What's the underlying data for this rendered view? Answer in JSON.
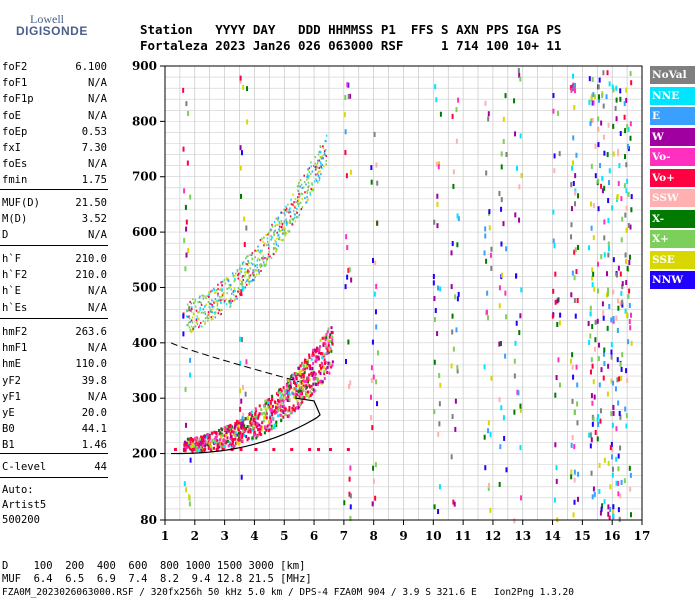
{
  "logo": {
    "line1": "Lowell",
    "line2": "DIGISONDE"
  },
  "header": {
    "row1": "Station   YYYY DAY   DDD HHMMSS P1  FFS S AXN PPS IGA PS",
    "row2": "Fortaleza 2023 Jan26 026 063000 RSF     1 714 100 10+ 11"
  },
  "params": {
    "group1": [
      {
        "k": "foF2",
        "v": "6.100"
      },
      {
        "k": "foF1",
        "v": "N/A"
      },
      {
        "k": "foF1p",
        "v": "N/A"
      },
      {
        "k": "foE",
        "v": "N/A"
      },
      {
        "k": "foEp",
        "v": "0.53"
      },
      {
        "k": "fxI",
        "v": "7.30"
      },
      {
        "k": "foEs",
        "v": "N/A"
      },
      {
        "k": "fmin",
        "v": "1.75"
      }
    ],
    "group2": [
      {
        "k": "MUF(D)",
        "v": "21.50"
      },
      {
        "k": "M(D)",
        "v": "3.52"
      },
      {
        "k": "D",
        "v": "N/A"
      }
    ],
    "group3": [
      {
        "k": "h`F",
        "v": "210.0"
      },
      {
        "k": "h`F2",
        "v": "210.0"
      },
      {
        "k": "h`E",
        "v": "N/A"
      },
      {
        "k": "h`Es",
        "v": "N/A"
      }
    ],
    "group4": [
      {
        "k": "hmF2",
        "v": "263.6"
      },
      {
        "k": "hmF1",
        "v": "N/A"
      },
      {
        "k": "hmE",
        "v": "110.0"
      },
      {
        "k": "yF2",
        "v": "39.8"
      },
      {
        "k": "yF1",
        "v": "N/A"
      },
      {
        "k": "yE",
        "v": "20.0"
      },
      {
        "k": "B0",
        "v": "44.1"
      },
      {
        "k": "B1",
        "v": "1.46"
      }
    ],
    "group5": [
      {
        "k": "C-level",
        "v": "44"
      }
    ],
    "auto": [
      "Auto:",
      "Artist5",
      "500200"
    ]
  },
  "legend": [
    {
      "label": "NoVal",
      "color": "#7f7f7f"
    },
    {
      "label": "NNE",
      "color": "#00e5ff"
    },
    {
      "label": "E",
      "color": "#3aa0ff"
    },
    {
      "label": "W",
      "color": "#a000a0"
    },
    {
      "label": "Vo-",
      "color": "#ff30c0"
    },
    {
      "label": "Vo+",
      "color": "#ff0040"
    },
    {
      "label": "SSW",
      "color": "#ffb0b0"
    },
    {
      "label": "X-",
      "color": "#007a00"
    },
    {
      "label": "X+",
      "color": "#7ccf5a"
    },
    {
      "label": "SSE",
      "color": "#d8d800"
    },
    {
      "label": "NNW",
      "color": "#2000ff"
    }
  ],
  "chart_data": {
    "type": "scatter",
    "xlim": [
      1,
      17
    ],
    "ylim": [
      80,
      900
    ],
    "x_ticks": [
      1,
      2,
      3,
      4,
      5,
      6,
      7,
      8,
      9,
      10,
      11,
      12,
      13,
      14,
      15,
      16,
      17
    ],
    "y_ticks": [
      80,
      200,
      300,
      400,
      500,
      600,
      700,
      800,
      900
    ],
    "grid": true
  },
  "footer": {
    "row1": "D    100  200  400  600  800 1000 1500 3000 [km]",
    "row2": "MUF  6.4  6.5  6.9  7.4  8.2  9.4 12.8 21.5 [MHz]",
    "row3": "FZA0M_2023026063000.RSF / 320fx256h 50 kHz 5.0 km / DPS-4 FZA0M 904 / 3.9 S 321.6 E   Ion2Png 1.3.20"
  }
}
